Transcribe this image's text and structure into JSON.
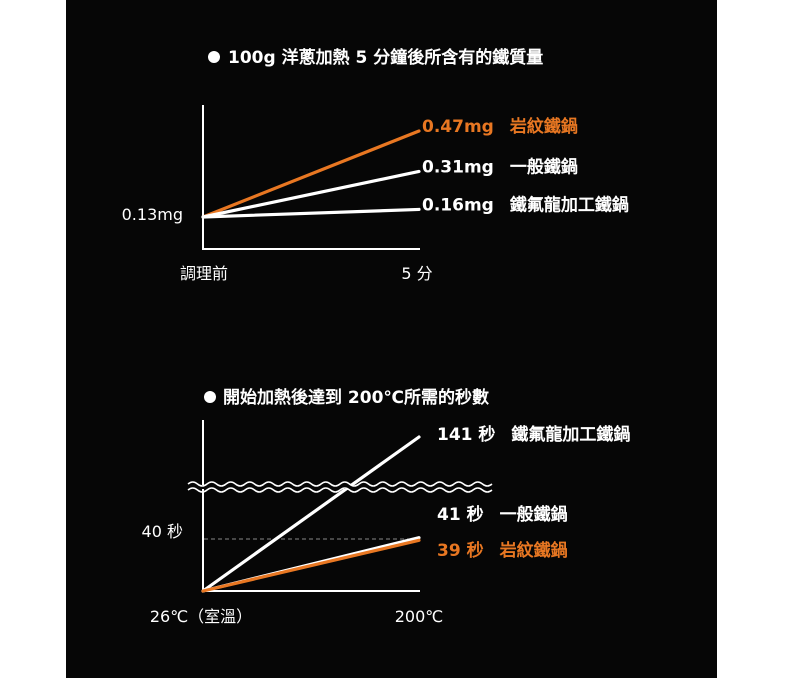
{
  "colors": {
    "background": "#060606",
    "accent": "#e87722",
    "line": "#ffffff",
    "dash": "#888888"
  },
  "chart_data": [
    {
      "type": "line",
      "title": "100g 洋蔥加熱 5 分鐘後所含有的鐵質量",
      "x_tick_labels": [
        "調理前",
        "5 分"
      ],
      "y_start_label": "0.13mg",
      "series": [
        {
          "name": "岩紋鐵鍋",
          "values": [
            0.13,
            0.47
          ],
          "value_label": "0.47mg",
          "color": "#e87722"
        },
        {
          "name": "一般鐵鍋",
          "values": [
            0.13,
            0.31
          ],
          "value_label": "0.31mg",
          "color": "#ffffff"
        },
        {
          "name": "鐵氟龍加工鐵鍋",
          "values": [
            0.13,
            0.16
          ],
          "value_label": "0.16mg",
          "color": "#ffffff"
        }
      ]
    },
    {
      "type": "line",
      "title": "開始加熱後達到 200℃所需的秒數",
      "x_tick_labels": [
        "26℃（室溫）",
        "200℃"
      ],
      "reference_line": {
        "value": 40,
        "label": "40 秒"
      },
      "axis_break": true,
      "series": [
        {
          "name": "鐵氟龍加工鐵鍋",
          "values": [
            0,
            141
          ],
          "value_label": "141 秒",
          "color": "#ffffff"
        },
        {
          "name": "一般鐵鍋",
          "values": [
            0,
            41
          ],
          "value_label": "41 秒",
          "color": "#ffffff"
        },
        {
          "name": "岩紋鐵鍋",
          "values": [
            0,
            39
          ],
          "value_label": "39 秒",
          "color": "#e87722"
        }
      ]
    }
  ]
}
